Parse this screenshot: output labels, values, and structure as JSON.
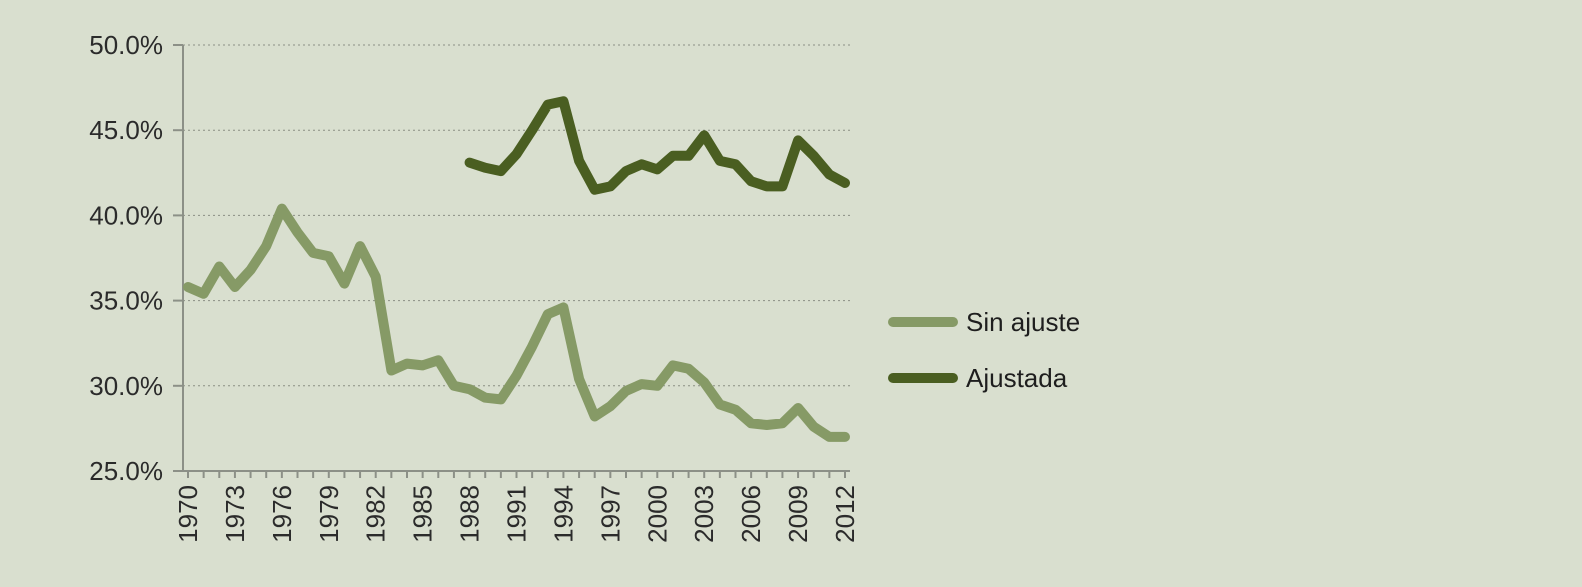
{
  "chart_data": {
    "type": "line",
    "title": "",
    "xlabel": "",
    "ylabel": "",
    "x_tick_labels": [
      "1970",
      "1973",
      "1976",
      "1979",
      "1982",
      "1985",
      "1988",
      "1991",
      "1994",
      "1997",
      "2000",
      "2003",
      "2006",
      "2009",
      "2012"
    ],
    "y_tick_labels": [
      "25.0%",
      "30.0%",
      "35.0%",
      "40.0%",
      "45.0%",
      "50.0%"
    ],
    "ylim": [
      25,
      50
    ],
    "xlim": [
      1970,
      2012
    ],
    "grid": true,
    "legend_position": "right",
    "series": [
      {
        "name": "Sin ajuste",
        "color": "#869a66",
        "x": [
          1970,
          1971,
          1972,
          1973,
          1974,
          1975,
          1976,
          1977,
          1978,
          1979,
          1980,
          1981,
          1982,
          1983,
          1984,
          1985,
          1986,
          1987,
          1988,
          1989,
          1990,
          1991,
          1992,
          1993,
          1994,
          1995,
          1996,
          1997,
          1998,
          1999,
          2000,
          2001,
          2002,
          2003,
          2004,
          2005,
          2006,
          2007,
          2008,
          2009,
          2010,
          2011,
          2012
        ],
        "values": [
          35.8,
          35.4,
          37.0,
          35.8,
          36.8,
          38.2,
          40.4,
          39.0,
          37.8,
          37.6,
          36.0,
          38.2,
          36.4,
          30.9,
          31.3,
          31.2,
          31.5,
          30.0,
          29.8,
          29.3,
          29.2,
          30.6,
          32.3,
          34.2,
          34.6,
          30.4,
          28.2,
          28.8,
          29.7,
          30.1,
          30.0,
          31.2,
          31.0,
          30.2,
          28.9,
          28.6,
          27.8,
          27.7,
          27.8,
          28.7,
          27.6,
          27.0,
          27.0
        ]
      },
      {
        "name": "Ajustada",
        "color": "#4a5e21",
        "x": [
          1988,
          1989,
          1990,
          1991,
          1992,
          1993,
          1994,
          1995,
          1996,
          1997,
          1998,
          1999,
          2000,
          2001,
          2002,
          2003,
          2004,
          2005,
          2006,
          2007,
          2008,
          2009,
          2010,
          2011,
          2012
        ],
        "values": [
          43.1,
          42.8,
          42.6,
          43.6,
          45.0,
          46.5,
          46.7,
          43.2,
          41.5,
          41.7,
          42.6,
          43.0,
          42.7,
          43.5,
          43.5,
          44.7,
          43.2,
          43.0,
          42.0,
          41.7,
          41.7,
          44.4,
          43.5,
          42.4,
          41.9
        ]
      }
    ]
  }
}
